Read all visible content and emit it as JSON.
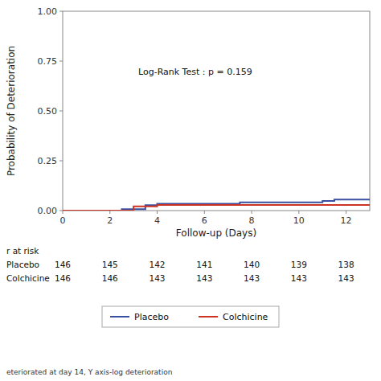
{
  "chart_data": {
    "type": "step",
    "xlabel": "Follow-up (Days)",
    "ylabel": "Probability of Deterioration",
    "xlim": [
      0,
      13
    ],
    "ylim": [
      0.0,
      1.0
    ],
    "xticks": [
      0,
      2,
      4,
      6,
      8,
      10,
      12
    ],
    "yticks": [
      {
        "value": 0.0,
        "label": "0.00"
      },
      {
        "value": 0.25,
        "label": "0.25"
      },
      {
        "value": 0.5,
        "label": "0.50"
      },
      {
        "value": 0.75,
        "label": "0.75"
      },
      {
        "value": 1.0,
        "label": "1.00"
      }
    ],
    "grid": false,
    "legend": "bottom",
    "annotations": [
      {
        "text": "Log-Rank Test : p = 0.159",
        "x": 3.2,
        "y": 0.68
      }
    ],
    "series": [
      {
        "name": "Placebo",
        "color": "#3a4fa0",
        "x": [
          0,
          1.5,
          2.5,
          3.0,
          3.5,
          4.0,
          5.0,
          6.0,
          7.5,
          8.0,
          9.0,
          10.0,
          11.0,
          11.5,
          13.0
        ],
        "values": [
          0.0,
          0.0,
          0.007,
          0.007,
          0.027,
          0.034,
          0.034,
          0.034,
          0.041,
          0.041,
          0.041,
          0.041,
          0.048,
          0.055,
          0.055
        ],
        "at_risk": [
          146,
          145,
          142,
          141,
          140,
          139,
          138
        ]
      },
      {
        "name": "Colchicine",
        "color": "#cc3322",
        "x": [
          0,
          2.5,
          3.0,
          3.5,
          4.0,
          5.0,
          6.0,
          7.0,
          8.0,
          9.0,
          10.0,
          11.0,
          13.0
        ],
        "values": [
          0.0,
          0.0,
          0.021,
          0.021,
          0.028,
          0.028,
          0.028,
          0.028,
          0.028,
          0.028,
          0.028,
          0.028,
          0.028
        ],
        "at_risk": [
          146,
          146,
          143,
          143,
          143,
          143,
          143
        ]
      }
    ],
    "at_risk_table": {
      "title": "r at risk",
      "x": [
        0,
        2,
        4,
        6,
        8,
        10,
        12
      ]
    },
    "footnote": "eteriorated at day 14, Y axis-log deterioration"
  }
}
